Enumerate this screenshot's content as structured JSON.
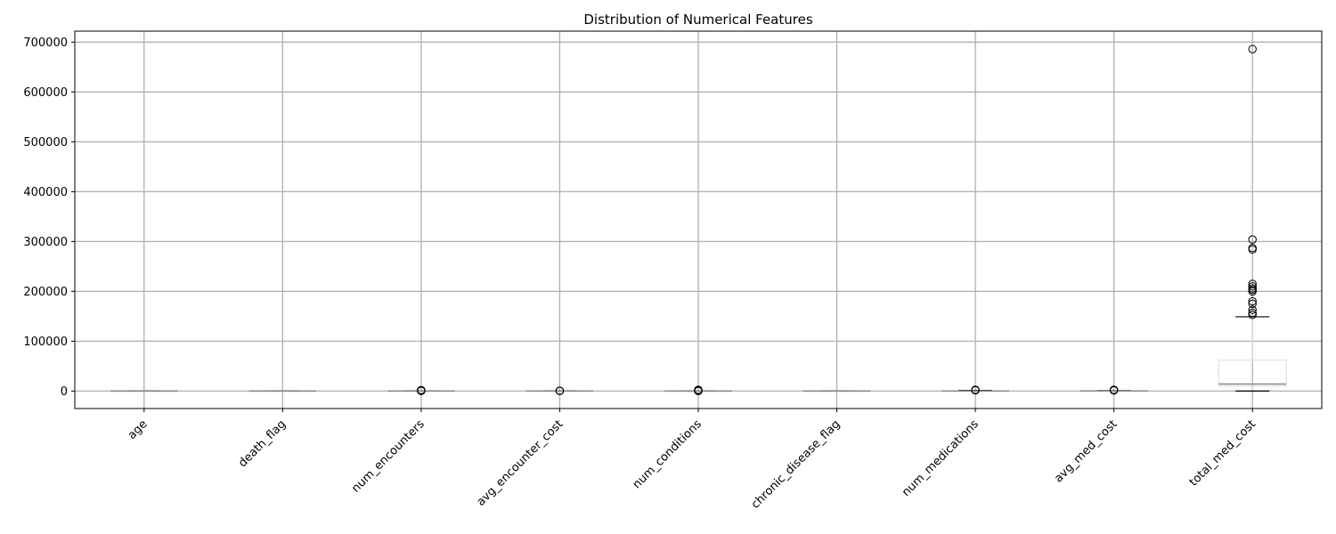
{
  "chart_data": {
    "type": "box",
    "title": "Distribution of Numerical Features",
    "xlabel": "",
    "ylabel": "",
    "grid": true,
    "ylim": [
      -35000,
      722000
    ],
    "y_ticks": [
      0,
      100000,
      200000,
      300000,
      400000,
      500000,
      600000,
      700000
    ],
    "y_tick_labels": [
      "0",
      "100000",
      "200000",
      "300000",
      "400000",
      "500000",
      "600000",
      "700000"
    ],
    "colors": {
      "box": "#dddddd",
      "median": "#888888",
      "whisker": "#dddddd",
      "cap": "#000000",
      "grid": "#b0b0b0",
      "outlier": "#000000"
    },
    "categories": [
      "age",
      "death_flag",
      "num_encounters",
      "avg_encounter_cost",
      "num_conditions",
      "chronic_disease_flag",
      "num_medications",
      "avg_med_cost",
      "total_med_cost"
    ],
    "boxes": [
      {
        "name": "age",
        "whislo": 0,
        "q1": 30,
        "med": 50,
        "q3": 70,
        "whishi": 100,
        "fliers": []
      },
      {
        "name": "death_flag",
        "whislo": 0,
        "q1": 0,
        "med": 0,
        "q3": 0,
        "whishi": 0,
        "fliers": []
      },
      {
        "name": "num_encounters",
        "whislo": 1,
        "q1": 20,
        "med": 60,
        "q3": 150,
        "whishi": 330,
        "fliers": [
          400,
          600,
          900,
          1400,
          2000
        ]
      },
      {
        "name": "avg_encounter_cost",
        "whislo": 50,
        "q1": 100,
        "med": 130,
        "q3": 170,
        "whishi": 270,
        "fliers": [
          300,
          400,
          600
        ]
      },
      {
        "name": "num_conditions",
        "whislo": 0,
        "q1": 10,
        "med": 25,
        "q3": 45,
        "whishi": 95,
        "fliers": [
          150,
          300,
          600,
          1500,
          2500
        ]
      },
      {
        "name": "chronic_disease_flag",
        "whislo": 0,
        "q1": 0,
        "med": 0,
        "q3": 1,
        "whishi": 1,
        "fliers": []
      },
      {
        "name": "num_medications",
        "whislo": 0,
        "q1": 20,
        "med": 100,
        "q3": 500,
        "whishi": 1200,
        "fliers": [
          1500,
          2000,
          2500
        ]
      },
      {
        "name": "avg_med_cost",
        "whislo": 0,
        "q1": 50,
        "med": 150,
        "q3": 400,
        "whishi": 900,
        "fliers": [
          1200,
          1800,
          2500
        ]
      },
      {
        "name": "total_med_cost",
        "whislo": 0,
        "q1": 10000,
        "med": 14000,
        "q3": 62000,
        "whishi": 149000,
        "fliers": [
          153000,
          157000,
          163000,
          175000,
          180000,
          200000,
          203000,
          206000,
          210000,
          215000,
          284000,
          287000,
          304000,
          686000
        ]
      }
    ]
  }
}
